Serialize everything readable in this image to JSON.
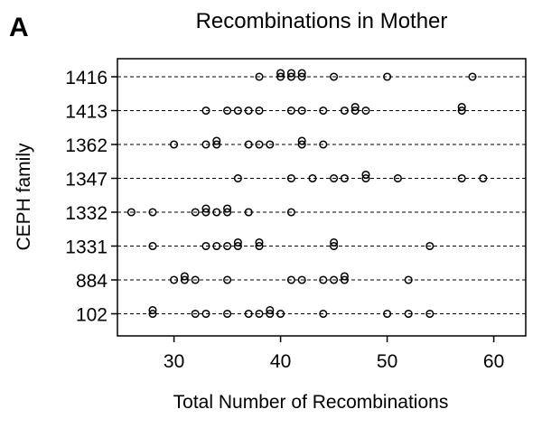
{
  "panel_label": "A",
  "chart_data": {
    "type": "scatter",
    "title": "Recombinations in Mother",
    "xlabel": "Total Number of Recombinations",
    "ylabel": "CEPH family",
    "xlim": [
      23,
      63
    ],
    "xticks": [
      30,
      40,
      50,
      60
    ],
    "grid": "horizontal-dashed",
    "categories": [
      "1416",
      "1413",
      "1362",
      "1347",
      "1332",
      "1331",
      "884",
      "102"
    ],
    "series": [
      {
        "category": "1416",
        "x": [
          38,
          40,
          40,
          41,
          41,
          42,
          42,
          45,
          50,
          58
        ]
      },
      {
        "category": "1413",
        "x": [
          33,
          35,
          36,
          37,
          38,
          41,
          42,
          44,
          46,
          47,
          47,
          48,
          57,
          57
        ]
      },
      {
        "category": "1362",
        "x": [
          30,
          33,
          34,
          34,
          37,
          38,
          39,
          42,
          42,
          44
        ]
      },
      {
        "category": "1347",
        "x": [
          36,
          41,
          43,
          45,
          46,
          48,
          48,
          51,
          57,
          59
        ]
      },
      {
        "category": "1332",
        "x": [
          26,
          28,
          32,
          33,
          33,
          34,
          35,
          35,
          37,
          41
        ]
      },
      {
        "category": "1331",
        "x": [
          28,
          33,
          34,
          35,
          36,
          36,
          38,
          38,
          45,
          45,
          54
        ]
      },
      {
        "category": "884",
        "x": [
          30,
          31,
          31,
          32,
          35,
          41,
          42,
          44,
          45,
          46,
          46,
          52
        ]
      },
      {
        "category": "102",
        "x": [
          28,
          28,
          32,
          33,
          35,
          37,
          38,
          39,
          39,
          40,
          44,
          50,
          52,
          54
        ]
      }
    ]
  }
}
